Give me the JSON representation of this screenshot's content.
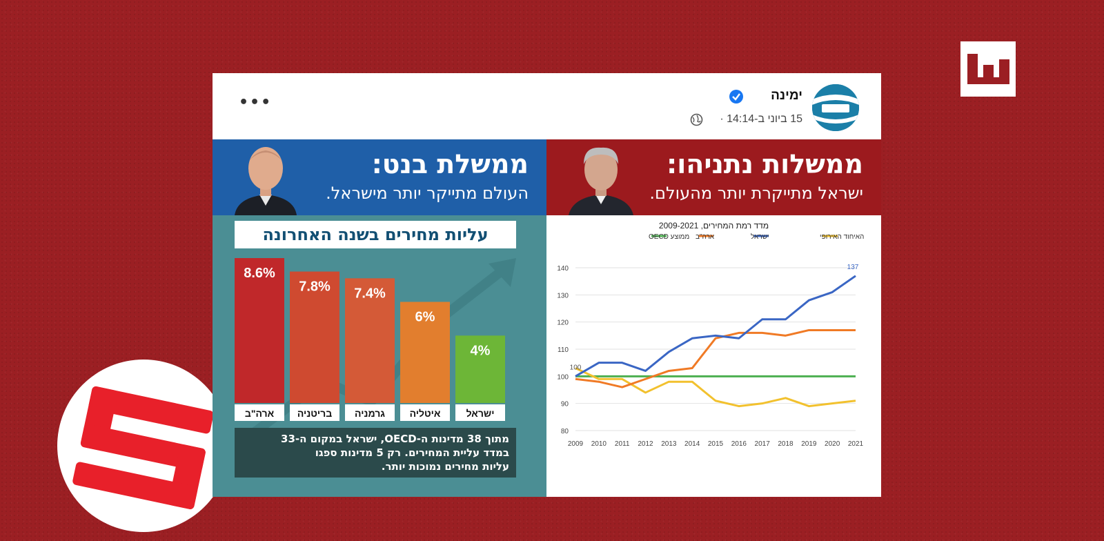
{
  "post": {
    "page_name": "ימינה",
    "timestamp": "15 ביוני ב-14:14 ·",
    "more_label": "•••"
  },
  "left_panel": {
    "title": "ממשלת בנט:",
    "subtitle": "העולם מתייקר יותר מישראל.",
    "bars_title": "עליות מחירים בשנה האחרונה",
    "footnote_lines": [
      "מתוך 38 מדינות ה-OECD, ישראל במקום ה-33",
      "במדד עליית המחירים. רק 5 מדינות ספגו",
      "עליות מחירים נמוכות יותר."
    ]
  },
  "right_panel": {
    "title": "ממשלות נתניהו:",
    "subtitle": "ישראל מתייקרת יותר מהעולם."
  },
  "colors": {
    "background": "#9b1f23",
    "bennett_blue": "#1f5fa8",
    "netanyahu_red": "#9c1a1e",
    "series_oecd": "#4caf50",
    "series_usa": "#f07a25",
    "series_israel": "#3a66c4",
    "series_eu": "#f2c12e"
  },
  "chart_data": [
    {
      "type": "bar",
      "title": "עליות מחירים בשנה האחרונה",
      "categories": [
        "ארה\"ב",
        "בריטניה",
        "גרמניה",
        "איטליה",
        "ישראל"
      ],
      "values": [
        8.6,
        7.8,
        7.4,
        6,
        4
      ],
      "value_labels": [
        "8.6%",
        "7.8%",
        "7.4%",
        "6%",
        "4%"
      ],
      "bar_colors": [
        "#c0282a",
        "#cf4a30",
        "#d45a37",
        "#e27e2e",
        "#6db637"
      ],
      "ylim": [
        0,
        8.6
      ]
    },
    {
      "type": "line",
      "title": "מדד רמת המחירים, 2009-2021",
      "x": [
        2009,
        2010,
        2011,
        2012,
        2013,
        2014,
        2015,
        2016,
        2017,
        2018,
        2019,
        2020,
        2021
      ],
      "ylim": [
        80,
        140
      ],
      "yticks": [
        80,
        90,
        100,
        110,
        120,
        130,
        140
      ],
      "grid": true,
      "legend_position": "top",
      "annotations": [
        {
          "text": "100",
          "x": 2009,
          "y": 100
        },
        {
          "text": "137",
          "x": 2021,
          "y": 137
        }
      ],
      "series": [
        {
          "name": "ממוצע OECD",
          "color": "#4caf50",
          "values": [
            100,
            100,
            100,
            100,
            100,
            100,
            100,
            100,
            100,
            100,
            100,
            100,
            100
          ]
        },
        {
          "name": "ארה\"ב",
          "color": "#f07a25",
          "values": [
            99,
            98,
            96,
            99,
            102,
            103,
            114,
            116,
            116,
            115,
            117,
            117,
            117
          ]
        },
        {
          "name": "ישראל",
          "color": "#3a66c4",
          "values": [
            100,
            105,
            105,
            102,
            109,
            114,
            115,
            114,
            121,
            121,
            128,
            131,
            137
          ]
        },
        {
          "name": "האיחוד האירופי",
          "color": "#f2c12e",
          "values": [
            103,
            99,
            99,
            94,
            98,
            98,
            91,
            89,
            90,
            92,
            89,
            90,
            91
          ]
        }
      ]
    }
  ]
}
